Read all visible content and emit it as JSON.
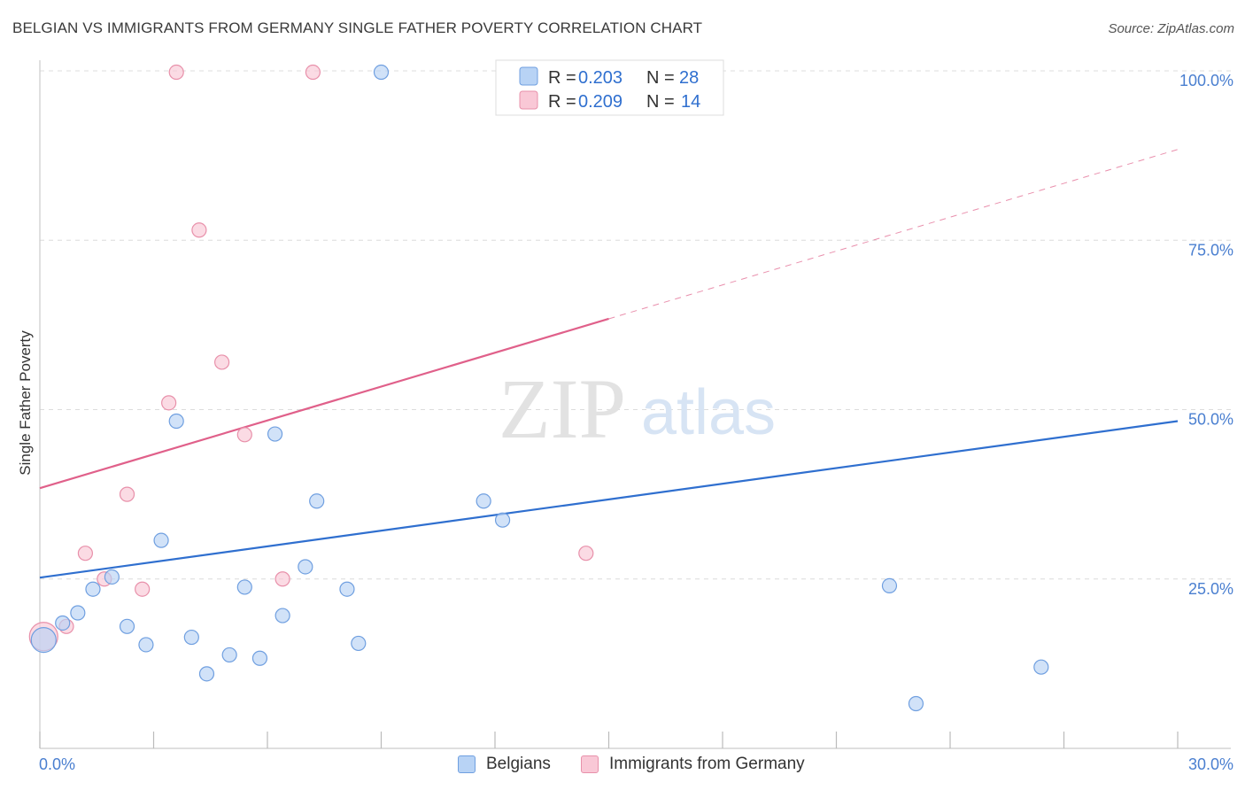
{
  "title": "BELGIAN VS IMMIGRANTS FROM GERMANY SINGLE FATHER POVERTY CORRELATION CHART",
  "source": "Source: ZipAtlas.com",
  "watermark": {
    "zip": "ZIP",
    "atlas": "atlas"
  },
  "colors": {
    "belgians_fill": "#b8d3f5",
    "belgians_stroke": "#6f9fe0",
    "belgians_line": "#2f6fcf",
    "germany_fill": "#f9c8d6",
    "germany_stroke": "#e890aa",
    "germany_line": "#e0608a",
    "axis_text": "#4a7fd0"
  },
  "legend_top": {
    "rows": [
      {
        "r_label": "R = ",
        "r_value": "0.203",
        "n_label": "N = ",
        "n_value": "28"
      },
      {
        "r_label": "R = ",
        "r_value": "0.209",
        "n_label": "N = ",
        "n_value": "14"
      }
    ]
  },
  "legend_bottom": {
    "belgians": "Belgians",
    "germany": "Immigrants from Germany"
  },
  "chart_data": {
    "type": "scatter",
    "title": "BELGIAN VS IMMIGRANTS FROM GERMANY SINGLE FATHER POVERTY CORRELATION CHART",
    "xlabel": "",
    "ylabel": "Single Father Poverty",
    "xlim": [
      0,
      30
    ],
    "ylim": [
      0,
      100
    ],
    "x_tick_labels": [
      "0.0%",
      "30.0%"
    ],
    "y_ticks": [
      25,
      50,
      75,
      100
    ],
    "y_tick_labels": [
      "25.0%",
      "50.0%",
      "75.0%",
      "100.0%"
    ],
    "grid": true,
    "legend_position": "top-center",
    "series": [
      {
        "name": "Belgians",
        "r": 0.203,
        "n": 28,
        "points": [
          [
            0.1,
            16.0
          ],
          [
            0.6,
            18.5
          ],
          [
            1.0,
            20.0
          ],
          [
            1.4,
            23.5
          ],
          [
            1.9,
            25.3
          ],
          [
            2.3,
            18.0
          ],
          [
            2.8,
            15.3
          ],
          [
            3.2,
            30.7
          ],
          [
            3.6,
            48.3
          ],
          [
            4.0,
            16.4
          ],
          [
            4.4,
            11.0
          ],
          [
            5.0,
            13.8
          ],
          [
            5.4,
            23.8
          ],
          [
            5.8,
            13.3
          ],
          [
            6.2,
            46.4
          ],
          [
            6.4,
            19.6
          ],
          [
            7.0,
            26.8
          ],
          [
            7.3,
            36.5
          ],
          [
            8.1,
            23.5
          ],
          [
            8.4,
            15.5
          ],
          [
            9.0,
            99.8
          ],
          [
            11.7,
            36.5
          ],
          [
            12.2,
            33.7
          ],
          [
            14.8,
            99.8
          ],
          [
            16.5,
            99.8
          ],
          [
            22.4,
            24.0
          ],
          [
            23.1,
            6.6
          ],
          [
            26.4,
            12.0
          ]
        ],
        "trend": {
          "x_start": 0,
          "y_start": 25.2,
          "x_end": 30,
          "y_end": 48.3,
          "style": "solid"
        }
      },
      {
        "name": "Immigrants from Germany",
        "r": 0.209,
        "n": 14,
        "points": [
          [
            0.1,
            16.5
          ],
          [
            0.7,
            18.0
          ],
          [
            1.2,
            28.8
          ],
          [
            1.7,
            25.0
          ],
          [
            2.3,
            37.5
          ],
          [
            2.7,
            23.5
          ],
          [
            3.4,
            51.0
          ],
          [
            3.6,
            99.8
          ],
          [
            4.2,
            76.5
          ],
          [
            4.8,
            57.0
          ],
          [
            5.4,
            46.3
          ],
          [
            6.4,
            25.0
          ],
          [
            7.2,
            99.8
          ],
          [
            14.4,
            28.8
          ]
        ],
        "trend": {
          "x_start": 0,
          "y_start": 38.4,
          "x_end": 30,
          "y_end": 88.4,
          "solid_until_x": 15.0
        }
      }
    ]
  }
}
